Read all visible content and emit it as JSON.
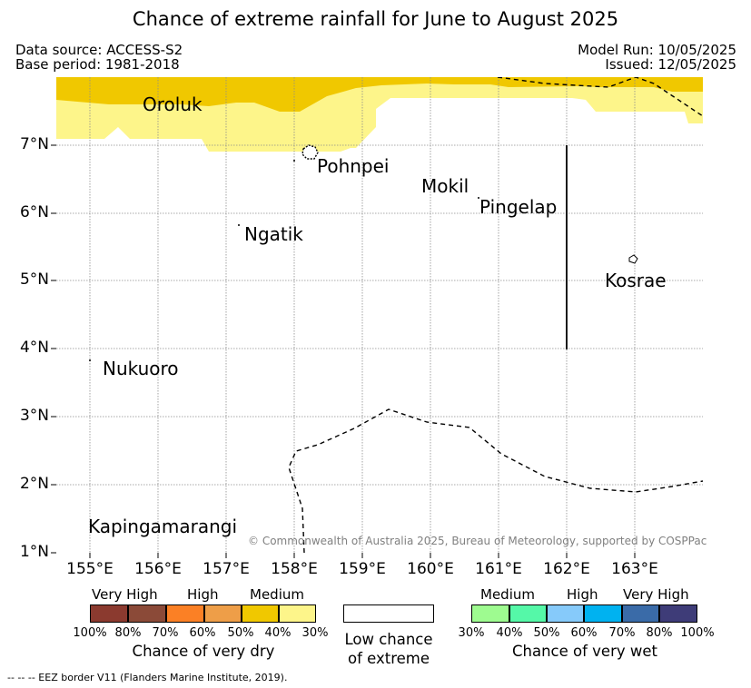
{
  "title": "Chance of extreme rainfall for June to August 2025",
  "meta": {
    "data_source": "Data source: ACCESS-S2",
    "base_period": "Base period: 1981-2018",
    "model_run": "Model Run: 10/05/2025",
    "issued": "Issued: 12/05/2025"
  },
  "map": {
    "latitude_labels": [
      "7°N",
      "6°N",
      "5°N",
      "4°N",
      "3°N",
      "2°N",
      "1°N"
    ],
    "longitude_labels": [
      "155°E",
      "156°E",
      "157°E",
      "158°E",
      "159°E",
      "160°E",
      "161°E",
      "162°E",
      "163°E"
    ],
    "places": [
      "Oroluk",
      "Pohnpei",
      "Mokil",
      "Pingelap",
      "Ngatik",
      "Kosrae",
      "Nukuoro",
      "Kapingamarangi"
    ],
    "copyright": "© Commonwealth of Australia 2025, Bureau of Meteorology, supported by COSPPac",
    "colors": {
      "medium_dry": "#f0c800",
      "low_medium_dry": "#fdf58a",
      "eez_line": "#000000"
    }
  },
  "legend": {
    "dry": {
      "categories": [
        "Very High",
        "High",
        "Medium"
      ],
      "ticks": [
        "100%",
        "80%",
        "70%",
        "60%",
        "50%",
        "40%",
        "30%"
      ],
      "colors": [
        "#8b3a2f",
        "#8b4a38",
        "#fb8025",
        "#ee9e48",
        "#f0c800",
        "#fdf58a"
      ],
      "label": "Chance of very dry"
    },
    "neutral": {
      "label_line1": "Low chance",
      "label_line2": "of extreme"
    },
    "wet": {
      "categories": [
        "Medium",
        "High",
        "Very High"
      ],
      "ticks": [
        "30%",
        "40%",
        "50%",
        "60%",
        "70%",
        "80%",
        "100%"
      ],
      "colors": [
        "#9efb90",
        "#55f8a8",
        "#86cafa",
        "#00b2f0",
        "#3a6ba8",
        "#3e3c78"
      ],
      "label": "Chance of very wet"
    }
  },
  "eez_note": "-- -- -- EEZ border V11 (Flanders Marine Institute, 2019)."
}
